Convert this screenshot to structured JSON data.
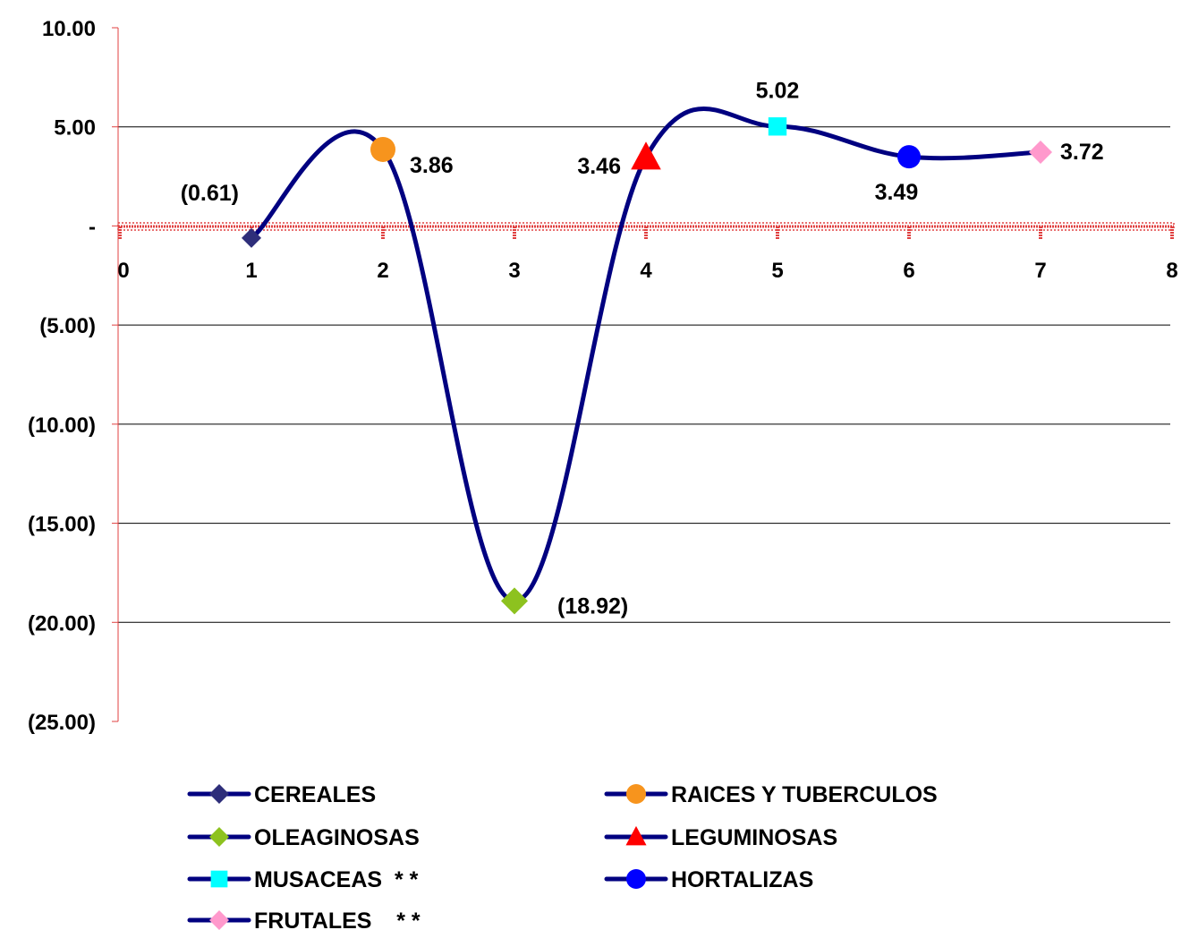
{
  "chart_data": {
    "type": "line",
    "x_ticks": [
      "0",
      "1",
      "2",
      "3",
      "4",
      "5",
      "6",
      "7",
      "8"
    ],
    "y_ticks": [
      "10.00",
      "5.00",
      "-",
      "(5.00)",
      "(10.00)",
      "(15.00)",
      "(20.00)",
      "(25.00)"
    ],
    "xlim": [
      0,
      8
    ],
    "ylim": [
      -25,
      10
    ],
    "grid": "horizontal",
    "legend_position": "bottom",
    "line_color": "#000080",
    "axis_color": "#E04040",
    "points": [
      {
        "x": 1,
        "y": -0.61,
        "label": "(0.61)",
        "name": "CEREALES",
        "marker": "diamond",
        "color": "#2E2E7A"
      },
      {
        "x": 2,
        "y": 3.86,
        "label": "3.86",
        "name": "RAICES Y TUBERCULOS",
        "marker": "circle",
        "color": "#F7941D"
      },
      {
        "x": 3,
        "y": -18.92,
        "label": "(18.92)",
        "name": "OLEAGINOSAS",
        "marker": "diamond",
        "color": "#8DC21F"
      },
      {
        "x": 4,
        "y": 3.46,
        "label": "3.46",
        "name": "LEGUMINOSAS",
        "marker": "triangle",
        "color": "#FF0000"
      },
      {
        "x": 5,
        "y": 5.02,
        "label": "5.02",
        "name": "MUSACEAS  * *",
        "marker": "square",
        "color": "#00FFFF"
      },
      {
        "x": 6,
        "y": 3.49,
        "label": "3.49",
        "name": "HORTALIZAS",
        "marker": "circle",
        "color": "#0000FF"
      },
      {
        "x": 7,
        "y": 3.72,
        "label": "3.72",
        "name": "FRUTALES    * *",
        "marker": "diamond",
        "color": "#FF99CC"
      }
    ]
  }
}
